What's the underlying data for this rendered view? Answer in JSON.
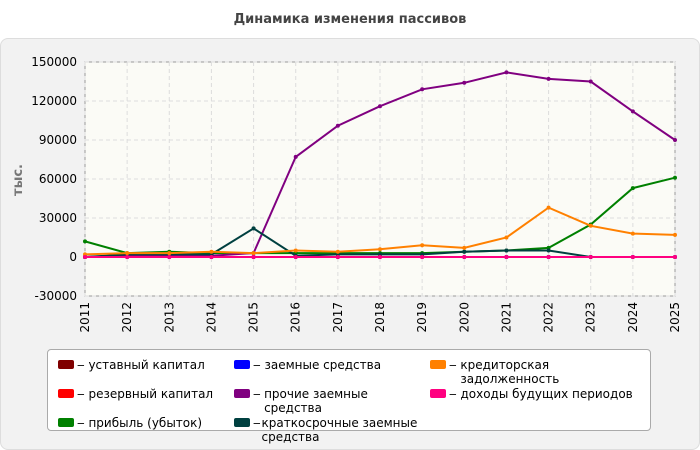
{
  "chart_data": {
    "type": "line",
    "title": "Динамика изменения пассивов",
    "y_label": "тыс.",
    "categories": [
      "2011",
      "2012",
      "2013",
      "2014",
      "2015",
      "2016",
      "2017",
      "2018",
      "2019",
      "2020",
      "2021",
      "2022",
      "2023",
      "2024",
      "2025"
    ],
    "ylim": [
      -30000,
      150000
    ],
    "yticks": [
      -30000,
      0,
      30000,
      60000,
      90000,
      120000,
      150000
    ],
    "grid": true,
    "series": [
      {
        "name": "уставный капитал",
        "color": "#800000",
        "values": [
          0,
          0,
          0,
          0,
          0,
          0,
          0,
          0,
          0,
          0,
          0,
          0,
          0,
          0,
          0
        ]
      },
      {
        "name": "резервный капитал",
        "color": "#ff0000",
        "values": [
          0,
          0,
          0,
          0,
          0,
          0,
          0,
          0,
          0,
          0,
          0,
          0,
          0,
          0,
          0
        ]
      },
      {
        "name": "прибыль (убыток)",
        "color": "#008000",
        "values": [
          12000,
          3000,
          4000,
          3000,
          3000,
          3000,
          3000,
          3000,
          3000,
          4000,
          5000,
          7000,
          25000,
          53000,
          61000
        ]
      },
      {
        "name": "заемные средства",
        "color": "#0000ff",
        "values": [
          0,
          0,
          0,
          0,
          0,
          0,
          0,
          0,
          0,
          0,
          0,
          0,
          0,
          0,
          0
        ]
      },
      {
        "name": "прочие заемные средства",
        "color": "#800080",
        "values": [
          0,
          1000,
          1000,
          1000,
          3000,
          77000,
          101000,
          116000,
          129000,
          134000,
          142000,
          137000,
          135000,
          112000,
          90000
        ]
      },
      {
        "name": "краткосрочные заемные средства",
        "color": "#004040",
        "values": [
          0,
          2000,
          2000,
          2000,
          22000,
          1000,
          2000,
          2000,
          2000,
          4000,
          5000,
          5000,
          0,
          null,
          null
        ]
      },
      {
        "name": "кредиторская задолженность",
        "color": "#ff8000",
        "values": [
          2000,
          3000,
          3000,
          4000,
          3000,
          5000,
          4000,
          6000,
          9000,
          7000,
          15000,
          38000,
          24000,
          18000,
          17000
        ]
      },
      {
        "name": "доходы будущих периодов",
        "color": "#ff0080",
        "values": [
          0,
          0,
          0,
          0,
          0,
          0,
          0,
          0,
          0,
          0,
          0,
          0,
          0,
          0,
          0
        ]
      }
    ]
  }
}
